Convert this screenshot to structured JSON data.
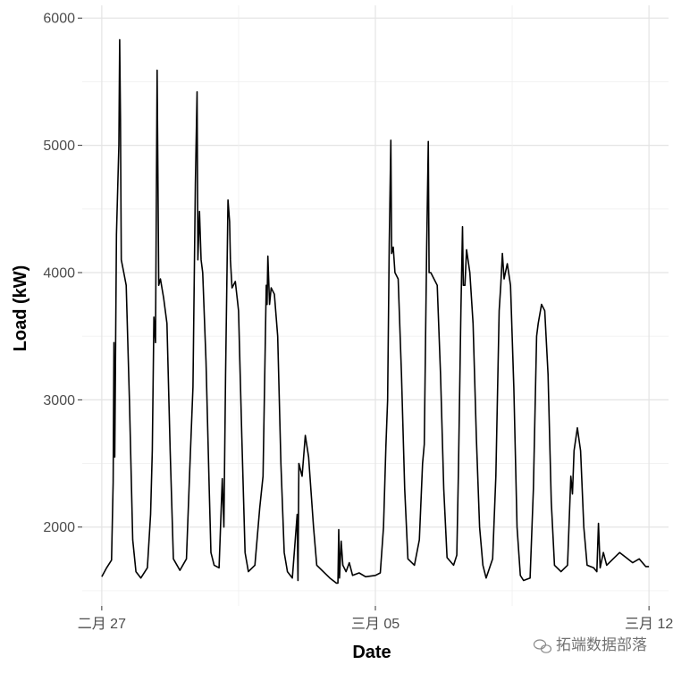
{
  "chart_data": {
    "type": "line",
    "title": "",
    "xlabel": "Date",
    "ylabel": "Load (kW)",
    "xlim": [
      "2012-02-27",
      "2012-03-12"
    ],
    "ylim": [
      1380,
      6100
    ],
    "grid": true,
    "x_ticks": [
      "二月 27",
      "三月 05",
      "三月 12"
    ],
    "y_ticks": [
      2000,
      3000,
      4000,
      5000,
      6000
    ],
    "series": [
      {
        "color": "#000000",
        "points": [
          [
            "2012-02-27 00:00",
            1610
          ],
          [
            "2012-02-27 03:00",
            1680
          ],
          [
            "2012-02-27 06:00",
            1740
          ],
          [
            "2012-02-27 07:00",
            2350
          ],
          [
            "2012-02-27 07:30",
            3450
          ],
          [
            "2012-02-27 08:00",
            2550
          ],
          [
            "2012-02-27 09:00",
            4300
          ],
          [
            "2012-02-27 10:30",
            5000
          ],
          [
            "2012-02-27 11:00",
            5830
          ],
          [
            "2012-02-27 11:30",
            5200
          ],
          [
            "2012-02-27 12:00",
            4100
          ],
          [
            "2012-02-27 13:30",
            4000
          ],
          [
            "2012-02-27 15:00",
            3900
          ],
          [
            "2012-02-27 17:00",
            3000
          ],
          [
            "2012-02-27 19:00",
            1900
          ],
          [
            "2012-02-27 21:00",
            1650
          ],
          [
            "2012-02-28 00:00",
            1600
          ],
          [
            "2012-02-28 04:00",
            1680
          ],
          [
            "2012-02-28 06:00",
            2100
          ],
          [
            "2012-02-28 07:00",
            2600
          ],
          [
            "2012-02-28 08:00",
            3650
          ],
          [
            "2012-02-28 09:00",
            3450
          ],
          [
            "2012-02-28 10:00",
            5590
          ],
          [
            "2012-02-28 11:00",
            3900
          ],
          [
            "2012-02-28 12:00",
            3950
          ],
          [
            "2012-02-28 14:00",
            3800
          ],
          [
            "2012-02-28 16:00",
            3600
          ],
          [
            "2012-02-28 18:00",
            2600
          ],
          [
            "2012-02-28 20:00",
            1750
          ],
          [
            "2012-02-29 00:00",
            1660
          ],
          [
            "2012-02-29 04:00",
            1750
          ],
          [
            "2012-02-29 06:00",
            2450
          ],
          [
            "2012-02-29 08:00",
            3100
          ],
          [
            "2012-02-29 09:30",
            4700
          ],
          [
            "2012-02-29 10:30",
            5420
          ],
          [
            "2012-02-29 11:00",
            4100
          ],
          [
            "2012-02-29 12:00",
            4480
          ],
          [
            "2012-02-29 13:00",
            4100
          ],
          [
            "2012-02-29 14:00",
            4000
          ],
          [
            "2012-02-29 16:00",
            3300
          ],
          [
            "2012-02-29 18:00",
            2300
          ],
          [
            "2012-02-29 19:00",
            1800
          ],
          [
            "2012-02-29 21:00",
            1700
          ],
          [
            "2012-03-01 00:00",
            1680
          ],
          [
            "2012-03-01 02:00",
            2380
          ],
          [
            "2012-03-01 03:00",
            2000
          ],
          [
            "2012-03-01 04:00",
            3200
          ],
          [
            "2012-03-01 05:30",
            4570
          ],
          [
            "2012-03-01 06:30",
            4400
          ],
          [
            "2012-03-01 07:00",
            4100
          ],
          [
            "2012-03-01 08:00",
            3880
          ],
          [
            "2012-03-01 10:00",
            3930
          ],
          [
            "2012-03-01 12:00",
            3700
          ],
          [
            "2012-03-01 14:00",
            2700
          ],
          [
            "2012-03-01 16:00",
            1800
          ],
          [
            "2012-03-01 18:00",
            1650
          ],
          [
            "2012-03-01 22:00",
            1700
          ],
          [
            "2012-03-02 01:00",
            2150
          ],
          [
            "2012-03-02 03:00",
            2400
          ],
          [
            "2012-03-02 05:00",
            3900
          ],
          [
            "2012-03-02 05:30",
            3750
          ],
          [
            "2012-03-02 06:00",
            4130
          ],
          [
            "2012-03-02 07:00",
            3750
          ],
          [
            "2012-03-02 08:00",
            3880
          ],
          [
            "2012-03-02 10:00",
            3830
          ],
          [
            "2012-03-02 12:00",
            3500
          ],
          [
            "2012-03-02 14:00",
            2500
          ],
          [
            "2012-03-02 16:00",
            1800
          ],
          [
            "2012-03-02 18:00",
            1650
          ],
          [
            "2012-03-02 21:00",
            1600
          ],
          [
            "2012-03-03 00:00",
            2100
          ],
          [
            "2012-03-03 00:30",
            1580
          ],
          [
            "2012-03-03 01:00",
            2500
          ],
          [
            "2012-03-03 03:00",
            2400
          ],
          [
            "2012-03-03 05:00",
            2720
          ],
          [
            "2012-03-03 07:00",
            2550
          ],
          [
            "2012-03-03 10:00",
            2000
          ],
          [
            "2012-03-03 12:00",
            1700
          ],
          [
            "2012-03-03 16:00",
            1650
          ],
          [
            "2012-03-03 20:00",
            1600
          ],
          [
            "2012-03-04 00:00",
            1560
          ],
          [
            "2012-03-04 01:00",
            1560
          ],
          [
            "2012-03-04 01:30",
            1980
          ],
          [
            "2012-03-04 02:00",
            1600
          ],
          [
            "2012-03-04 03:00",
            1890
          ],
          [
            "2012-03-04 04:00",
            1700
          ],
          [
            "2012-03-04 06:00",
            1650
          ],
          [
            "2012-03-04 08:00",
            1720
          ],
          [
            "2012-03-04 10:00",
            1620
          ],
          [
            "2012-03-04 14:00",
            1640
          ],
          [
            "2012-03-04 18:00",
            1610
          ],
          [
            "2012-03-05 00:00",
            1620
          ],
          [
            "2012-03-05 03:00",
            1640
          ],
          [
            "2012-03-05 05:00",
            2000
          ],
          [
            "2012-03-05 06:30",
            2640
          ],
          [
            "2012-03-05 07:30",
            3000
          ],
          [
            "2012-03-05 08:30",
            4220
          ],
          [
            "2012-03-05 09:30",
            5040
          ],
          [
            "2012-03-05 10:00",
            4150
          ],
          [
            "2012-03-05 11:00",
            4200
          ],
          [
            "2012-03-05 12:00",
            4000
          ],
          [
            "2012-03-05 14:00",
            3950
          ],
          [
            "2012-03-05 16:00",
            3200
          ],
          [
            "2012-03-05 18:00",
            2300
          ],
          [
            "2012-03-05 20:00",
            1750
          ],
          [
            "2012-03-06 00:00",
            1700
          ],
          [
            "2012-03-06 03:00",
            1900
          ],
          [
            "2012-03-06 05:00",
            2500
          ],
          [
            "2012-03-06 06:00",
            2650
          ],
          [
            "2012-03-06 07:30",
            4200
          ],
          [
            "2012-03-06 08:30",
            5030
          ],
          [
            "2012-03-06 09:00",
            4000
          ],
          [
            "2012-03-06 10:00",
            4000
          ],
          [
            "2012-03-06 12:00",
            3950
          ],
          [
            "2012-03-06 14:00",
            3900
          ],
          [
            "2012-03-06 16:00",
            3200
          ],
          [
            "2012-03-06 18:00",
            2300
          ],
          [
            "2012-03-06 20:00",
            1760
          ],
          [
            "2012-03-07 00:00",
            1700
          ],
          [
            "2012-03-07 02:00",
            1780
          ],
          [
            "2012-03-07 03:00",
            2430
          ],
          [
            "2012-03-07 04:30",
            3700
          ],
          [
            "2012-03-07 05:30",
            4360
          ],
          [
            "2012-03-07 06:00",
            3900
          ],
          [
            "2012-03-07 07:00",
            3900
          ],
          [
            "2012-03-07 08:00",
            4180
          ],
          [
            "2012-03-07 10:00",
            4000
          ],
          [
            "2012-03-07 12:00",
            3600
          ],
          [
            "2012-03-07 14:00",
            2700
          ],
          [
            "2012-03-07 16:00",
            2000
          ],
          [
            "2012-03-07 18:00",
            1700
          ],
          [
            "2012-03-07 20:00",
            1600
          ],
          [
            "2012-03-08 00:00",
            1750
          ],
          [
            "2012-03-08 02:00",
            2400
          ],
          [
            "2012-03-08 04:00",
            3700
          ],
          [
            "2012-03-08 05:00",
            3900
          ],
          [
            "2012-03-08 06:00",
            4150
          ],
          [
            "2012-03-08 07:00",
            3950
          ],
          [
            "2012-03-08 09:00",
            4070
          ],
          [
            "2012-03-08 11:00",
            3900
          ],
          [
            "2012-03-08 13:00",
            3100
          ],
          [
            "2012-03-08 15:00",
            2000
          ],
          [
            "2012-03-08 17:00",
            1620
          ],
          [
            "2012-03-08 19:00",
            1580
          ],
          [
            "2012-03-08 23:00",
            1600
          ],
          [
            "2012-03-09 01:00",
            2300
          ],
          [
            "2012-03-09 03:00",
            3500
          ],
          [
            "2012-03-09 04:00",
            3600
          ],
          [
            "2012-03-09 06:00",
            3750
          ],
          [
            "2012-03-09 08:00",
            3700
          ],
          [
            "2012-03-09 10:00",
            3200
          ],
          [
            "2012-03-09 12:00",
            2200
          ],
          [
            "2012-03-09 14:00",
            1700
          ],
          [
            "2012-03-09 18:00",
            1650
          ],
          [
            "2012-03-09 22:00",
            1700
          ],
          [
            "2012-03-10 00:00",
            2400
          ],
          [
            "2012-03-10 01:00",
            2260
          ],
          [
            "2012-03-10 02:00",
            2600
          ],
          [
            "2012-03-10 04:00",
            2780
          ],
          [
            "2012-03-10 06:00",
            2600
          ],
          [
            "2012-03-10 08:00",
            2000
          ],
          [
            "2012-03-10 10:00",
            1700
          ],
          [
            "2012-03-10 14:00",
            1680
          ],
          [
            "2012-03-10 16:00",
            1650
          ],
          [
            "2012-03-10 17:00",
            2030
          ],
          [
            "2012-03-10 18:00",
            1680
          ],
          [
            "2012-03-10 20:00",
            1800
          ],
          [
            "2012-03-10 22:00",
            1700
          ],
          [
            "2012-03-11 02:00",
            1750
          ],
          [
            "2012-03-11 06:00",
            1800
          ],
          [
            "2012-03-11 10:00",
            1760
          ],
          [
            "2012-03-11 14:00",
            1720
          ],
          [
            "2012-03-11 18:00",
            1750
          ],
          [
            "2012-03-11 22:00",
            1690
          ],
          [
            "2012-03-11 23:59",
            1690
          ]
        ]
      }
    ]
  },
  "watermark": {
    "text": "拓端数据部落",
    "icon": "wechat-icon"
  }
}
